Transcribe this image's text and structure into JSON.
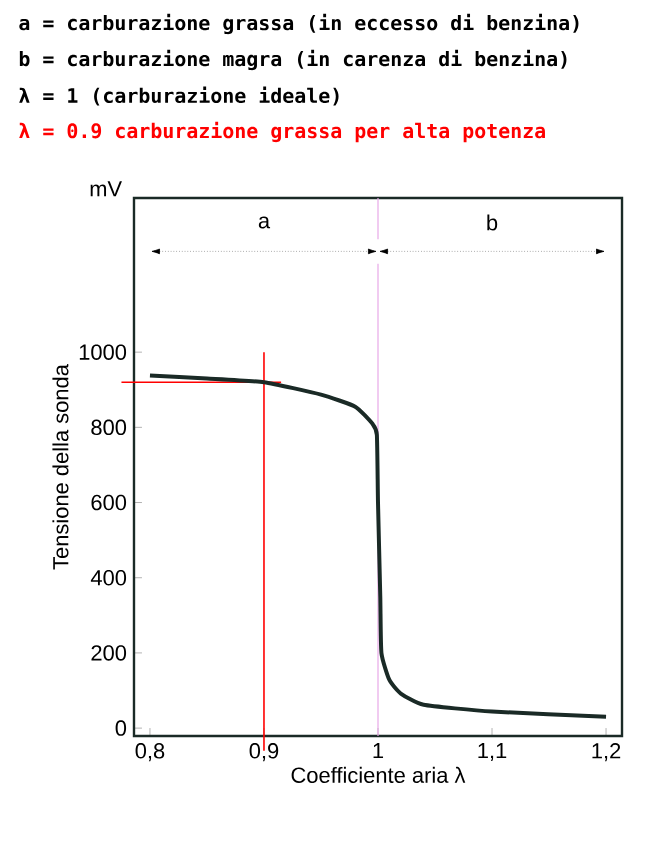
{
  "chart_data": {
    "type": "line",
    "xlabel": "Coefficiente aria λ",
    "ylabel": "Tensione della sonda",
    "annotations": [
      "a = carburazione grassa (in eccesso di benzina)",
      "b = carburazione magra (in carenza di benzina)",
      "λ = 1 (carburazione ideale)",
      "mV"
    ],
    "x": [
      0.8,
      0.85,
      0.9,
      0.95,
      0.98,
      0.995,
      0.999,
      1.0,
      1.002,
      1.003,
      1.01,
      1.02,
      1.04,
      1.1,
      1.2
    ],
    "series": [
      {
        "color": "#1a2a26",
        "values": [
          938,
          930,
          920,
          887,
          855,
          810,
          780,
          600,
          350,
          200,
          128,
          92,
          62,
          44,
          30
        ]
      }
    ],
    "xlim": [
      0.786,
      1.214
    ],
    "ylim": [
      -21,
      1410
    ],
    "xticks": [
      {
        "value": 0.8,
        "label": "0,8"
      },
      {
        "value": 0.9,
        "label": "0,9"
      },
      1,
      {
        "value": 1.1,
        "label": "1,1"
      },
      {
        "value": 1.2,
        "label": "1,2"
      }
    ],
    "yticks": [
      0,
      200,
      400,
      600,
      800,
      1000
    ],
    "ref_lines": [
      {
        "axis": "x",
        "value": 0.9,
        "label": "λ = 0.9  carburazione grassa per alta potenza",
        "color": "#ff0000"
      },
      {
        "axis": "y",
        "value": 920,
        "color": "#ff0000"
      },
      {
        "axis": "x",
        "value": 1,
        "color": "#e8a8e8"
      }
    ],
    "bands": [
      {
        "axis": "x",
        "from": 0.8,
        "to": 1,
        "label": "a",
        "color": "#ffffff"
      },
      {
        "axis": "x",
        "from": 1,
        "to": 1.2,
        "label": "b",
        "color": "#ffffff"
      }
    ],
    "grid": false,
    "marker": "none",
    "line_style": "solid"
  }
}
